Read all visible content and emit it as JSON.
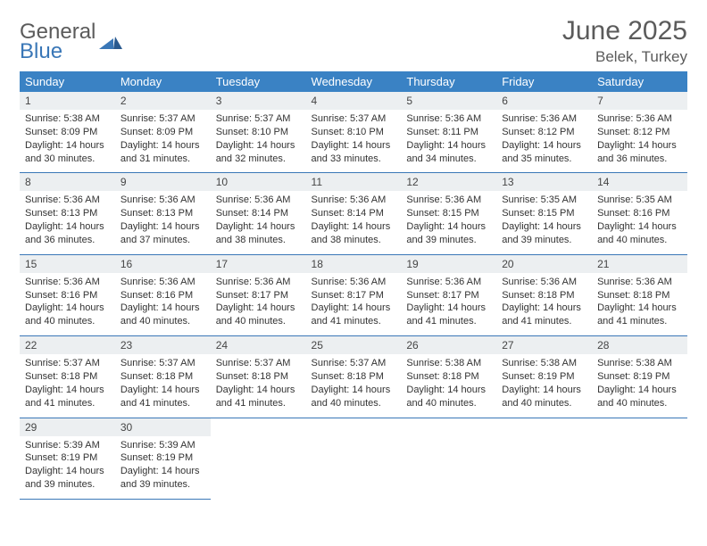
{
  "logo": {
    "word1": "General",
    "word2": "Blue"
  },
  "title": "June 2025",
  "location": "Belek, Turkey",
  "colors": {
    "header_bg": "#3a82c4",
    "header_fg": "#ffffff",
    "daynum_bg": "#eceff1",
    "border": "#3a77b7",
    "title_color": "#5b5b5b",
    "text_color": "#333333",
    "logo_gray": "#5b5b5b",
    "logo_blue": "#3a77b7"
  },
  "day_headers": [
    "Sunday",
    "Monday",
    "Tuesday",
    "Wednesday",
    "Thursday",
    "Friday",
    "Saturday"
  ],
  "weeks": [
    [
      {
        "n": "1",
        "sr": "5:38 AM",
        "ss": "8:09 PM",
        "dl": "14 hours and 30 minutes."
      },
      {
        "n": "2",
        "sr": "5:37 AM",
        "ss": "8:09 PM",
        "dl": "14 hours and 31 minutes."
      },
      {
        "n": "3",
        "sr": "5:37 AM",
        "ss": "8:10 PM",
        "dl": "14 hours and 32 minutes."
      },
      {
        "n": "4",
        "sr": "5:37 AM",
        "ss": "8:10 PM",
        "dl": "14 hours and 33 minutes."
      },
      {
        "n": "5",
        "sr": "5:36 AM",
        "ss": "8:11 PM",
        "dl": "14 hours and 34 minutes."
      },
      {
        "n": "6",
        "sr": "5:36 AM",
        "ss": "8:12 PM",
        "dl": "14 hours and 35 minutes."
      },
      {
        "n": "7",
        "sr": "5:36 AM",
        "ss": "8:12 PM",
        "dl": "14 hours and 36 minutes."
      }
    ],
    [
      {
        "n": "8",
        "sr": "5:36 AM",
        "ss": "8:13 PM",
        "dl": "14 hours and 36 minutes."
      },
      {
        "n": "9",
        "sr": "5:36 AM",
        "ss": "8:13 PM",
        "dl": "14 hours and 37 minutes."
      },
      {
        "n": "10",
        "sr": "5:36 AM",
        "ss": "8:14 PM",
        "dl": "14 hours and 38 minutes."
      },
      {
        "n": "11",
        "sr": "5:36 AM",
        "ss": "8:14 PM",
        "dl": "14 hours and 38 minutes."
      },
      {
        "n": "12",
        "sr": "5:36 AM",
        "ss": "8:15 PM",
        "dl": "14 hours and 39 minutes."
      },
      {
        "n": "13",
        "sr": "5:35 AM",
        "ss": "8:15 PM",
        "dl": "14 hours and 39 minutes."
      },
      {
        "n": "14",
        "sr": "5:35 AM",
        "ss": "8:16 PM",
        "dl": "14 hours and 40 minutes."
      }
    ],
    [
      {
        "n": "15",
        "sr": "5:36 AM",
        "ss": "8:16 PM",
        "dl": "14 hours and 40 minutes."
      },
      {
        "n": "16",
        "sr": "5:36 AM",
        "ss": "8:16 PM",
        "dl": "14 hours and 40 minutes."
      },
      {
        "n": "17",
        "sr": "5:36 AM",
        "ss": "8:17 PM",
        "dl": "14 hours and 40 minutes."
      },
      {
        "n": "18",
        "sr": "5:36 AM",
        "ss": "8:17 PM",
        "dl": "14 hours and 41 minutes."
      },
      {
        "n": "19",
        "sr": "5:36 AM",
        "ss": "8:17 PM",
        "dl": "14 hours and 41 minutes."
      },
      {
        "n": "20",
        "sr": "5:36 AM",
        "ss": "8:18 PM",
        "dl": "14 hours and 41 minutes."
      },
      {
        "n": "21",
        "sr": "5:36 AM",
        "ss": "8:18 PM",
        "dl": "14 hours and 41 minutes."
      }
    ],
    [
      {
        "n": "22",
        "sr": "5:37 AM",
        "ss": "8:18 PM",
        "dl": "14 hours and 41 minutes."
      },
      {
        "n": "23",
        "sr": "5:37 AM",
        "ss": "8:18 PM",
        "dl": "14 hours and 41 minutes."
      },
      {
        "n": "24",
        "sr": "5:37 AM",
        "ss": "8:18 PM",
        "dl": "14 hours and 41 minutes."
      },
      {
        "n": "25",
        "sr": "5:37 AM",
        "ss": "8:18 PM",
        "dl": "14 hours and 40 minutes."
      },
      {
        "n": "26",
        "sr": "5:38 AM",
        "ss": "8:18 PM",
        "dl": "14 hours and 40 minutes."
      },
      {
        "n": "27",
        "sr": "5:38 AM",
        "ss": "8:19 PM",
        "dl": "14 hours and 40 minutes."
      },
      {
        "n": "28",
        "sr": "5:38 AM",
        "ss": "8:19 PM",
        "dl": "14 hours and 40 minutes."
      }
    ],
    [
      {
        "n": "29",
        "sr": "5:39 AM",
        "ss": "8:19 PM",
        "dl": "14 hours and 39 minutes."
      },
      {
        "n": "30",
        "sr": "5:39 AM",
        "ss": "8:19 PM",
        "dl": "14 hours and 39 minutes."
      },
      null,
      null,
      null,
      null,
      null
    ]
  ],
  "labels": {
    "sunrise": "Sunrise: ",
    "sunset": "Sunset: ",
    "daylight": "Daylight: "
  }
}
